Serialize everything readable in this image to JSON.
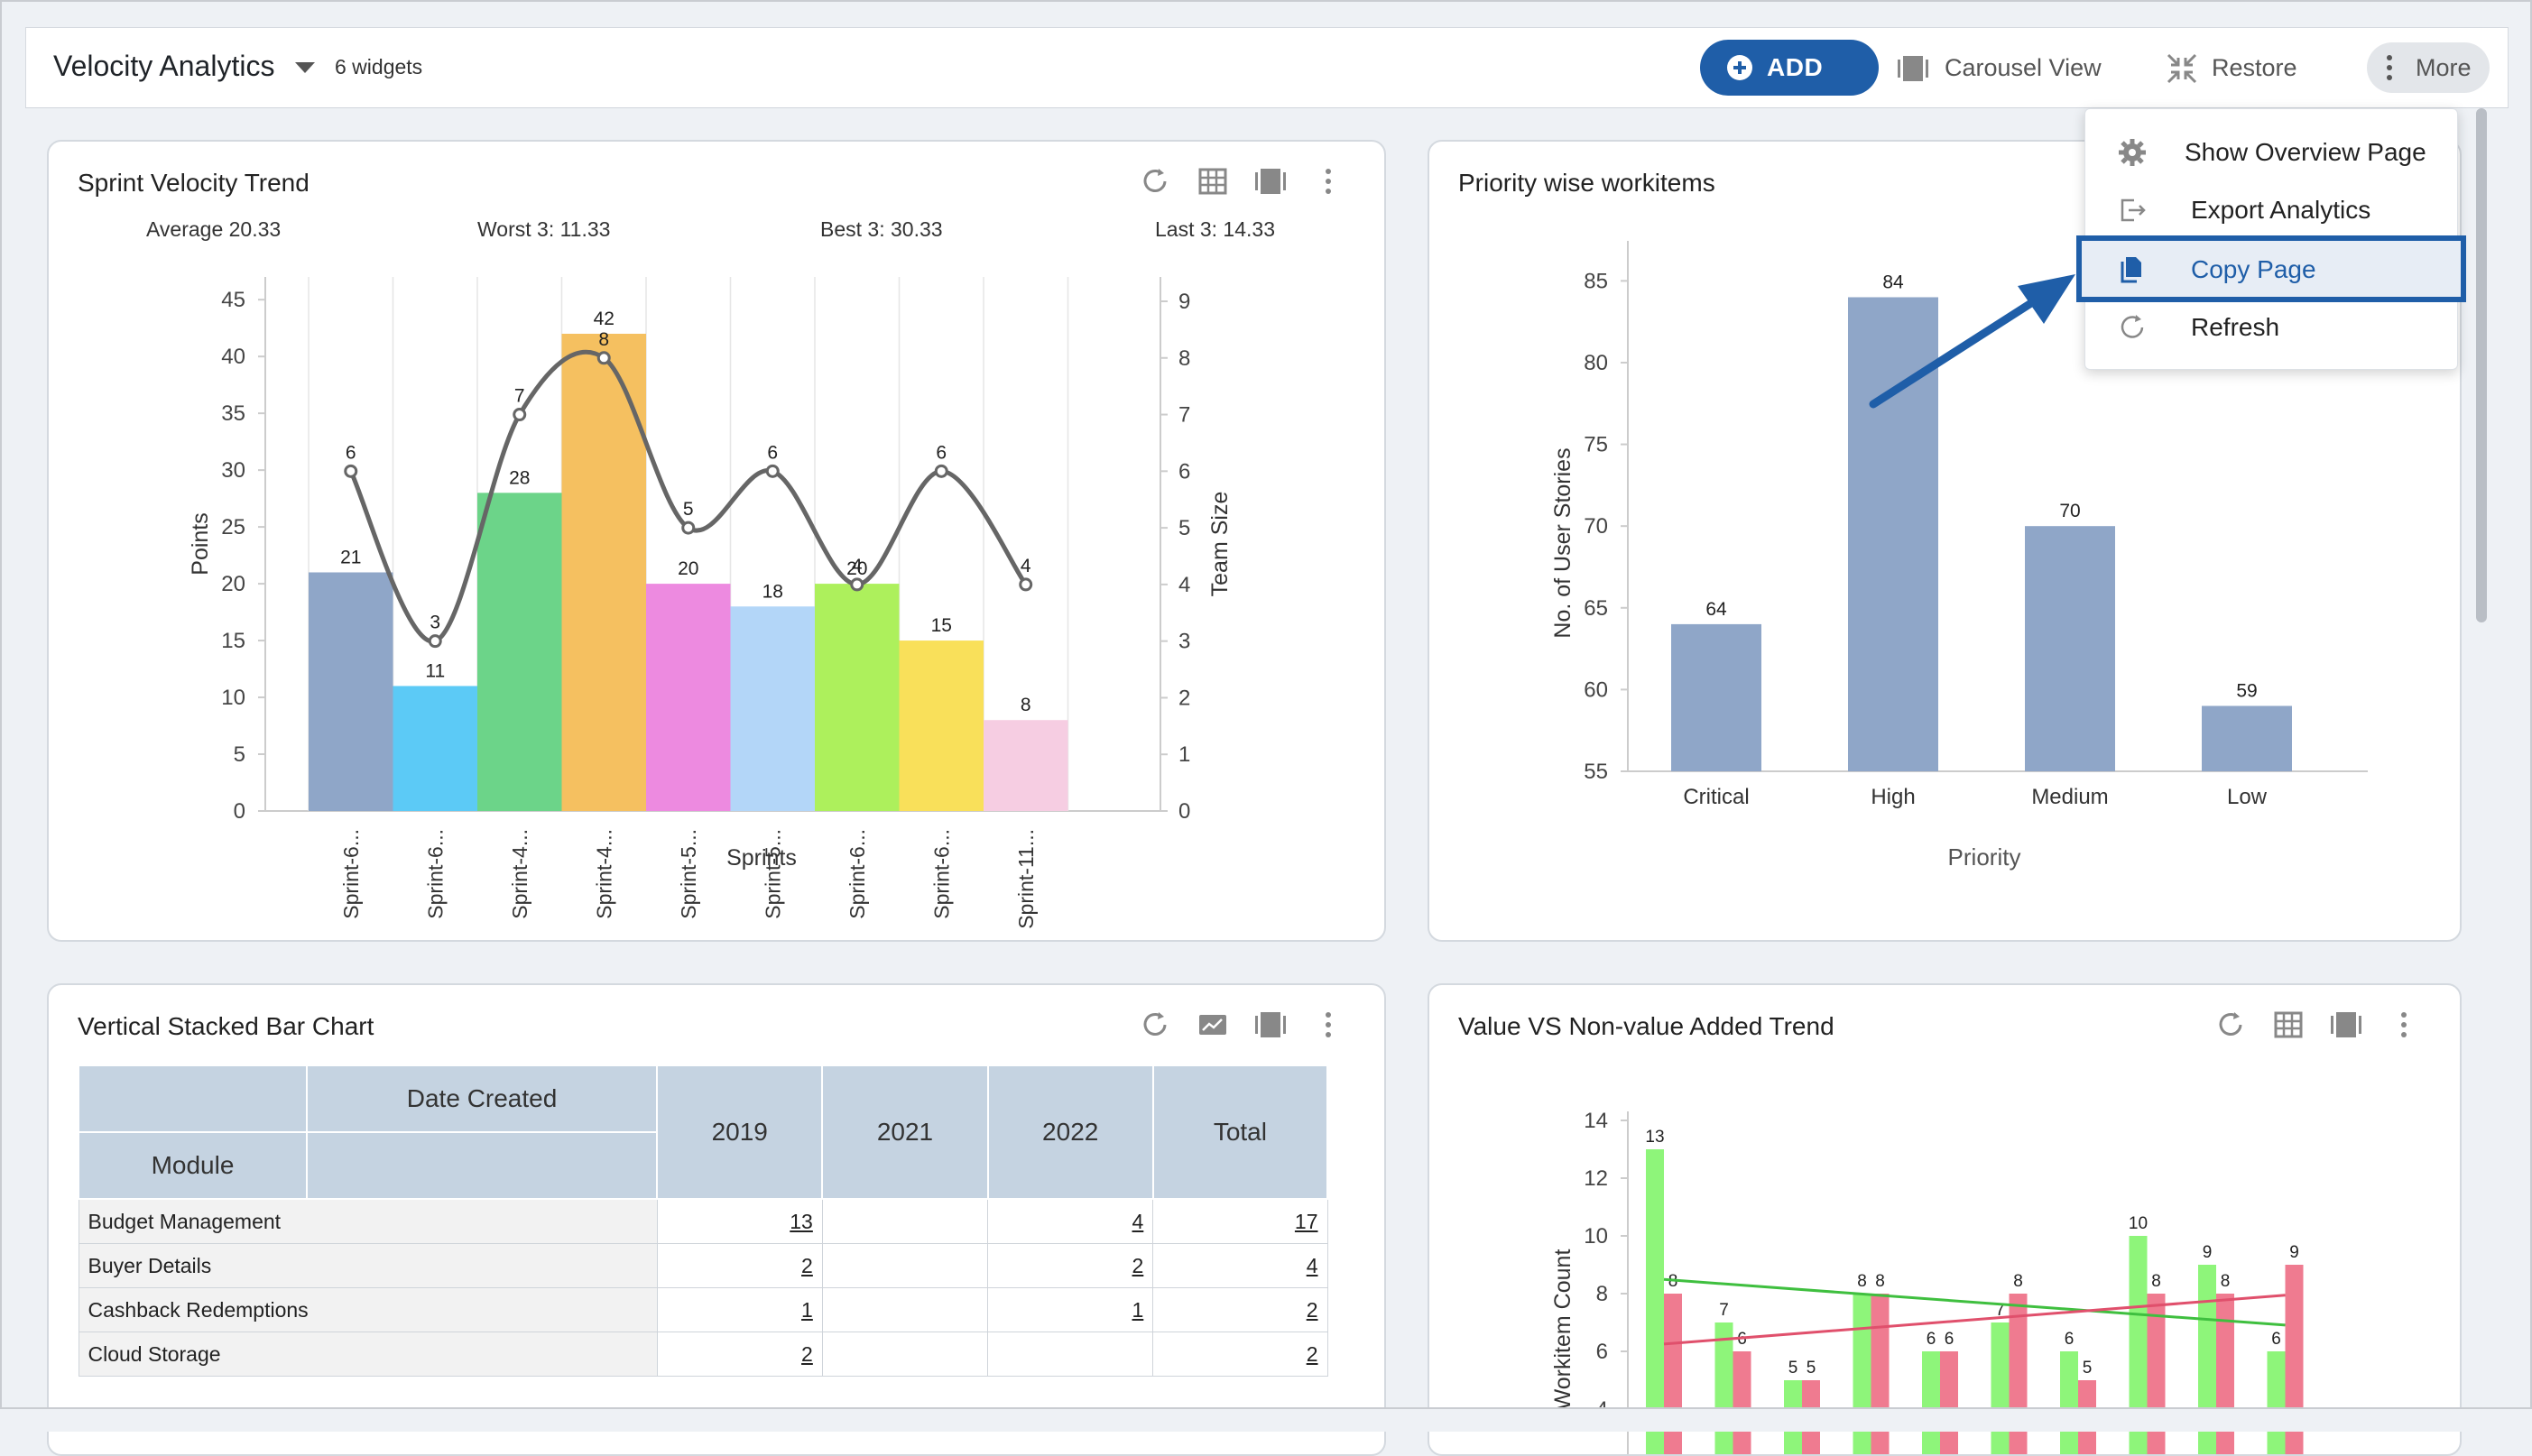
{
  "header": {
    "title": "Velocity Analytics",
    "widget_count": "6 widgets",
    "add_label": "ADD",
    "carousel_label": "Carousel View",
    "restore_label": "Restore",
    "more_label": "More"
  },
  "menu": {
    "items": [
      {
        "label": "Show Overview Page",
        "icon": "gear-icon"
      },
      {
        "label": "Export Analytics",
        "icon": "export-icon"
      },
      {
        "label": "Copy Page",
        "icon": "copy-icon"
      },
      {
        "label": "Refresh",
        "icon": "refresh-icon"
      }
    ],
    "highlighted": "Copy Page"
  },
  "widgets": {
    "velocity": {
      "title": "Sprint Velocity Trend",
      "stats": {
        "average": "Average 20.33",
        "worst": "Worst 3: 11.33",
        "best": "Best 3: 30.33",
        "last": "Last 3: 14.33"
      }
    },
    "priority": {
      "title": "Priority wise workitems"
    },
    "stacked": {
      "title": "Vertical Stacked Bar Chart"
    },
    "value": {
      "title": "Value VS Non-value Added Trend"
    }
  },
  "table": {
    "header": {
      "date_created": "Date Created",
      "module": "Module",
      "y2019": "2019",
      "y2021": "2021",
      "y2022": "2022",
      "total": "Total"
    },
    "rows": [
      {
        "module": "Budget Management",
        "y2019": "13",
        "y2021": "",
        "y2022": "4",
        "total": "17"
      },
      {
        "module": "Buyer Details",
        "y2019": "2",
        "y2021": "",
        "y2022": "2",
        "total": "4"
      },
      {
        "module": "Cashback Redemptions",
        "y2019": "1",
        "y2021": "",
        "y2022": "1",
        "total": "2"
      },
      {
        "module": "Cloud Storage",
        "y2019": "2",
        "y2021": "",
        "y2022": "",
        "total": "2"
      }
    ]
  },
  "colors": {
    "accent": "#1f5ea8",
    "velocity_bars": [
      "#8fa6c8",
      "#5ccaf6",
      "#6cd489",
      "#f5c060",
      "#ed8ae0",
      "#b3d6f8",
      "#adf05c",
      "#f9e05a",
      "#f6cde2"
    ],
    "priority_bar": "#8fa6c8",
    "value_green": "#8ef57a",
    "value_red": "#ef7b90"
  },
  "chart_data": [
    {
      "type": "bar",
      "title": "Sprint Velocity Trend",
      "xlabel": "Sprints",
      "ylabel": "Points",
      "y2label": "Team Size",
      "categories": [
        "Sprint-6...",
        "Sprint-6...",
        "Sprint-4...",
        "Sprint-4...",
        "Sprint-5...",
        "Sprint-5...",
        "Sprint-6...",
        "Sprint-6...",
        "Sprint-11..."
      ],
      "series": [
        {
          "name": "Points",
          "values": [
            21,
            11,
            28,
            42,
            20,
            18,
            20,
            15,
            8
          ]
        },
        {
          "name": "Team Size",
          "values": [
            6,
            3,
            7,
            8,
            5,
            6,
            4,
            6,
            4
          ]
        }
      ],
      "yticks": [
        "0",
        "5",
        "10",
        "15",
        "20",
        "25",
        "30",
        "35",
        "40",
        "45"
      ],
      "y2ticks": [
        "0",
        "1",
        "2",
        "3",
        "4",
        "5",
        "6",
        "7",
        "8",
        "9"
      ],
      "ylim": [
        0,
        47
      ],
      "y2lim": [
        0,
        9
      ]
    },
    {
      "type": "bar",
      "title": "Priority wise workitems",
      "xlabel": "Priority",
      "ylabel": "No. of User Stories",
      "categories": [
        "Critical",
        "High",
        "Medium",
        "Low"
      ],
      "values": [
        64,
        84,
        70,
        59
      ],
      "yticks": [
        "55",
        "60",
        "65",
        "70",
        "75",
        "80",
        "85"
      ],
      "ylim": [
        55,
        88
      ]
    },
    {
      "type": "bar",
      "title": "Value VS Non-value Added Trend",
      "ylabel": "Workitem Count",
      "series": [
        {
          "values": [
            13,
            7,
            5,
            8,
            6,
            7,
            6,
            10,
            9,
            6
          ]
        },
        {
          "values": [
            8,
            6,
            5,
            8,
            6,
            8,
            5,
            8,
            8,
            9
          ]
        }
      ],
      "yticks": [
        "4",
        "6",
        "8",
        "10",
        "12",
        "14"
      ],
      "ylim": [
        4,
        14.6
      ]
    }
  ]
}
